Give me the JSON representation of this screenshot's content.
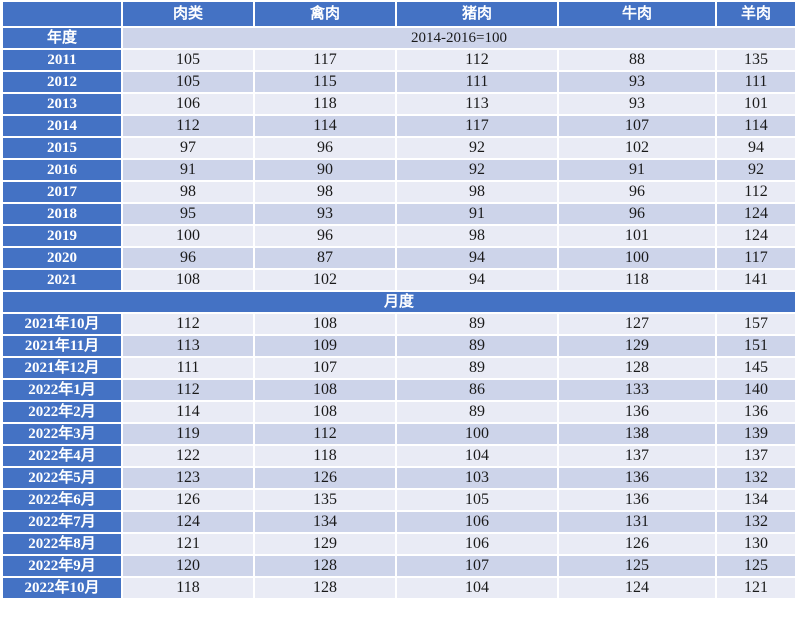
{
  "chart_data": {
    "type": "table",
    "columns": [
      "肉类",
      "禽肉",
      "猪肉",
      "牛肉",
      "羊肉"
    ],
    "corner_label": "",
    "annual": {
      "label": "年度",
      "base_period_note": "2014-2016=100",
      "rows": [
        {
          "label": "2011",
          "values": [
            105,
            117,
            112,
            88,
            135
          ]
        },
        {
          "label": "2012",
          "values": [
            105,
            115,
            111,
            93,
            111
          ]
        },
        {
          "label": "2013",
          "values": [
            106,
            118,
            113,
            93,
            101
          ]
        },
        {
          "label": "2014",
          "values": [
            112,
            114,
            117,
            107,
            114
          ]
        },
        {
          "label": "2015",
          "values": [
            97,
            96,
            92,
            102,
            94
          ]
        },
        {
          "label": "2016",
          "values": [
            91,
            90,
            92,
            91,
            92
          ]
        },
        {
          "label": "2017",
          "values": [
            98,
            98,
            98,
            96,
            112
          ]
        },
        {
          "label": "2018",
          "values": [
            95,
            93,
            91,
            96,
            124
          ]
        },
        {
          "label": "2019",
          "values": [
            100,
            96,
            98,
            101,
            124
          ]
        },
        {
          "label": "2020",
          "values": [
            96,
            87,
            94,
            100,
            117
          ]
        },
        {
          "label": "2021",
          "values": [
            108,
            102,
            94,
            118,
            141
          ]
        }
      ]
    },
    "monthly": {
      "label": "月度",
      "rows": [
        {
          "label": "2021年10月",
          "values": [
            112,
            108,
            89,
            127,
            157
          ]
        },
        {
          "label": "2021年11月",
          "values": [
            113,
            109,
            89,
            129,
            151
          ]
        },
        {
          "label": "2021年12月",
          "values": [
            111,
            107,
            89,
            128,
            145
          ]
        },
        {
          "label": "2022年1月",
          "values": [
            112,
            108,
            86,
            133,
            140
          ]
        },
        {
          "label": "2022年2月",
          "values": [
            114,
            108,
            89,
            136,
            136
          ]
        },
        {
          "label": "2022年3月",
          "values": [
            119,
            112,
            100,
            138,
            139
          ]
        },
        {
          "label": "2022年4月",
          "values": [
            122,
            118,
            104,
            137,
            137
          ]
        },
        {
          "label": "2022年5月",
          "values": [
            123,
            126,
            103,
            136,
            132
          ]
        },
        {
          "label": "2022年6月",
          "values": [
            126,
            135,
            105,
            136,
            134
          ]
        },
        {
          "label": "2022年7月",
          "values": [
            124,
            134,
            106,
            131,
            132
          ]
        },
        {
          "label": "2022年8月",
          "values": [
            121,
            129,
            106,
            126,
            130
          ]
        },
        {
          "label": "2022年9月",
          "values": [
            120,
            128,
            107,
            125,
            125
          ]
        },
        {
          "label": "2022年10月",
          "values": [
            118,
            128,
            104,
            124,
            121
          ]
        }
      ]
    },
    "colors": {
      "header_blue": "#4472C4",
      "band_dark": "#CDD4EA",
      "band_light": "#E9EBF5"
    }
  }
}
